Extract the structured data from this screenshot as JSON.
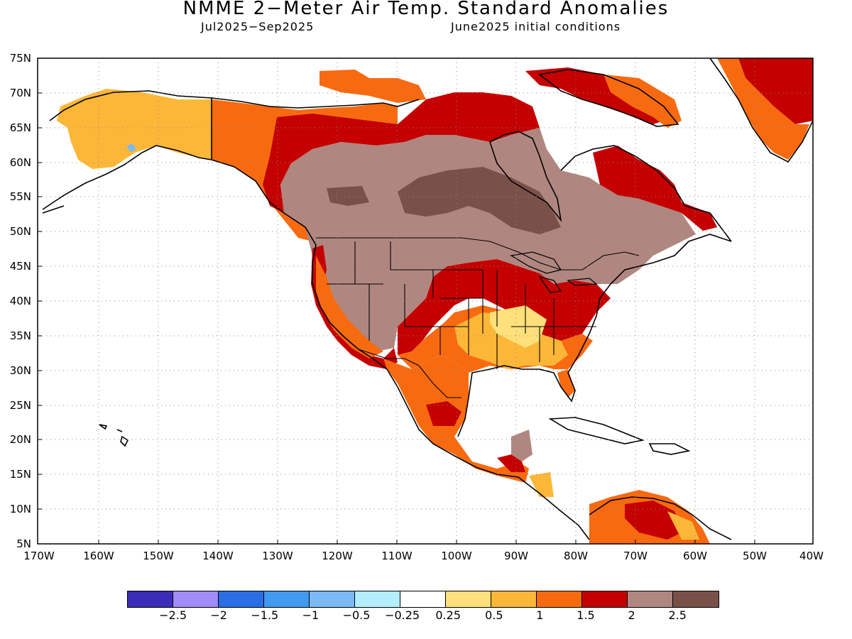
{
  "title": "NMME 2−Meter Air Temp. Standard Anomalies",
  "subtitle_period": "Jul2025−Sep2025",
  "subtitle_init": "June2025 initial conditions",
  "map": {
    "lat_labels": [
      "75N",
      "70N",
      "65N",
      "60N",
      "55N",
      "50N",
      "45N",
      "40N",
      "35N",
      "30N",
      "25N",
      "20N",
      "15N",
      "10N",
      "5N"
    ],
    "lon_labels": [
      "170W",
      "160W",
      "150W",
      "140W",
      "130W",
      "120W",
      "110W",
      "100W",
      "90W",
      "80W",
      "70W",
      "60W",
      "50W",
      "40W"
    ],
    "gridlines": "dotted",
    "region": "North America"
  },
  "legend": {
    "colors": [
      "#3b2db8",
      "#a08cf8",
      "#2a6ee6",
      "#4199f0",
      "#7bbaf5",
      "#b2eefb",
      "#ffffff",
      "#ffe07a",
      "#fdb738",
      "#f86a10",
      "#c40000",
      "#b08780",
      "#7a5148"
    ],
    "labels": [
      "−2.5",
      "−2",
      "−1.5",
      "−1",
      "−0.5",
      "−0.25",
      "0.25",
      "0.5",
      "1",
      "1.5",
      "2",
      "2.5"
    ]
  }
}
